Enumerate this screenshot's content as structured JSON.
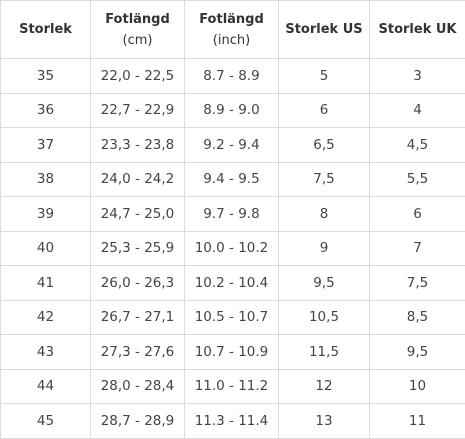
{
  "table": {
    "headers": [
      {
        "line1": "Storlek",
        "line2": ""
      },
      {
        "line1": "Fotlängd",
        "line2": "(cm)"
      },
      {
        "line1": "Fotlängd",
        "line2": "(inch)"
      },
      {
        "line1": "Storlek US",
        "line2": ""
      },
      {
        "line1": "Storlek UK",
        "line2": ""
      }
    ],
    "rows": [
      [
        "35",
        "22,0 - 22,5",
        "8.7 - 8.9",
        "5",
        "3"
      ],
      [
        "36",
        "22,7 - 22,9",
        "8.9 - 9.0",
        "6",
        "4"
      ],
      [
        "37",
        "23,3 - 23,8",
        "9.2 - 9.4",
        "6,5",
        "4,5"
      ],
      [
        "38",
        "24,0 - 24,2",
        "9.4 - 9.5",
        "7,5",
        "5,5"
      ],
      [
        "39",
        "24,7 - 25,0",
        "9.7 - 9.8",
        "8",
        "6"
      ],
      [
        "40",
        "25,3 - 25,9",
        "10.0 - 10.2",
        "9",
        "7"
      ],
      [
        "41",
        "26,0 - 26,3",
        "10.2 - 10.4",
        "9,5",
        "7,5"
      ],
      [
        "42",
        "26,7 - 27,1",
        "10.5 - 10.7",
        "10,5",
        "8,5"
      ],
      [
        "43",
        "27,3 - 27,6",
        "10.7 - 10.9",
        "11,5",
        "9,5"
      ],
      [
        "44",
        "28,0 - 28,4",
        "11.0 - 11.2",
        "12",
        "10"
      ],
      [
        "45",
        "28,7 - 28,9",
        "11.3 - 11.4",
        "13",
        "11"
      ]
    ]
  }
}
